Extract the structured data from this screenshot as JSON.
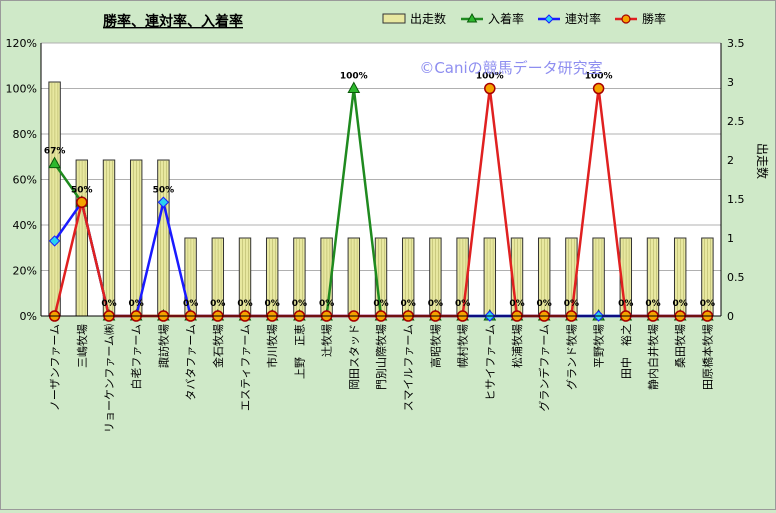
{
  "chart_data": {
    "type": "bar",
    "title": "勝率、連対率、入着率",
    "watermark": "©Caniの競馬データ研究室",
    "ylabel_right": "出走数",
    "ylabel_left": "",
    "xlabel": "",
    "ylim_left": [
      0,
      1.2
    ],
    "ylim_right": [
      0,
      3.5
    ],
    "left_ticks": [
      "0%",
      "20%",
      "40%",
      "60%",
      "80%",
      "100%",
      "120%"
    ],
    "right_ticks": [
      "0",
      "0.5",
      "1",
      "1.5",
      "2",
      "2.5",
      "3",
      "3.5"
    ],
    "grid": true,
    "legend_position": "top",
    "categories": [
      "ノーザンファーム",
      "三嶋牧場",
      "リョーケンファーム㈱",
      "白老ファーム",
      "諏訪牧場",
      "タバタファーム",
      "金石牧場",
      "エスティファーム",
      "市川牧場",
      "上野　正恵",
      "辻牧場",
      "岡田スタッド",
      "門別山際牧場",
      "スマイルファーム",
      "高昭牧場",
      "幌村牧場",
      "ヒサイファーム",
      "松浦牧場",
      "グランデファーム",
      "グランド牧場",
      "平野牧場",
      "田中　裕之",
      "静内白井牧場",
      "桑田牧場",
      "田原橋本牧場"
    ],
    "series": [
      {
        "name": "出走数",
        "kind": "bar",
        "axis": "right",
        "color": "#e8e8a0",
        "values": [
          3,
          2,
          2,
          2,
          2,
          1,
          1,
          1,
          1,
          1,
          1,
          1,
          1,
          1,
          1,
          1,
          1,
          1,
          1,
          1,
          1,
          1,
          1,
          1,
          1
        ]
      },
      {
        "name": "入着率",
        "kind": "line",
        "axis": "left",
        "color": "#1f8a1f",
        "marker": "triangle",
        "values": [
          0.67,
          0.5,
          0,
          0,
          0,
          0,
          0,
          0,
          0,
          0,
          0,
          1.0,
          0,
          0,
          0,
          0,
          0,
          0,
          0,
          0,
          0,
          0,
          0,
          0,
          0
        ]
      },
      {
        "name": "連対率",
        "kind": "line",
        "axis": "left",
        "color": "#1a1aff",
        "marker": "diamond",
        "values": [
          0.33,
          0.5,
          0,
          0,
          0.5,
          0,
          0,
          0,
          0,
          0,
          0,
          0,
          0,
          0,
          0,
          0,
          0,
          0,
          0,
          0,
          0,
          0,
          0,
          0,
          0
        ]
      },
      {
        "name": "勝率",
        "kind": "line",
        "axis": "left",
        "color": "#e02020",
        "marker": "circle",
        "values": [
          0,
          0.5,
          0,
          0,
          0,
          0,
          0,
          0,
          0,
          0,
          0,
          0,
          0,
          0,
          0,
          0,
          1.0,
          0,
          0,
          0,
          1.0,
          0,
          0,
          0,
          0
        ]
      }
    ],
    "data_labels": [
      "67%",
      "50%",
      "0%",
      "0%",
      "50%",
      "0%",
      "0%",
      "0%",
      "0%",
      "0%",
      "0%",
      "100%",
      "0%",
      "0%",
      "0%",
      "0%",
      "100%",
      "0%",
      "0%",
      "0%",
      "100%",
      "0%",
      "0%",
      "0%",
      "0%"
    ]
  }
}
